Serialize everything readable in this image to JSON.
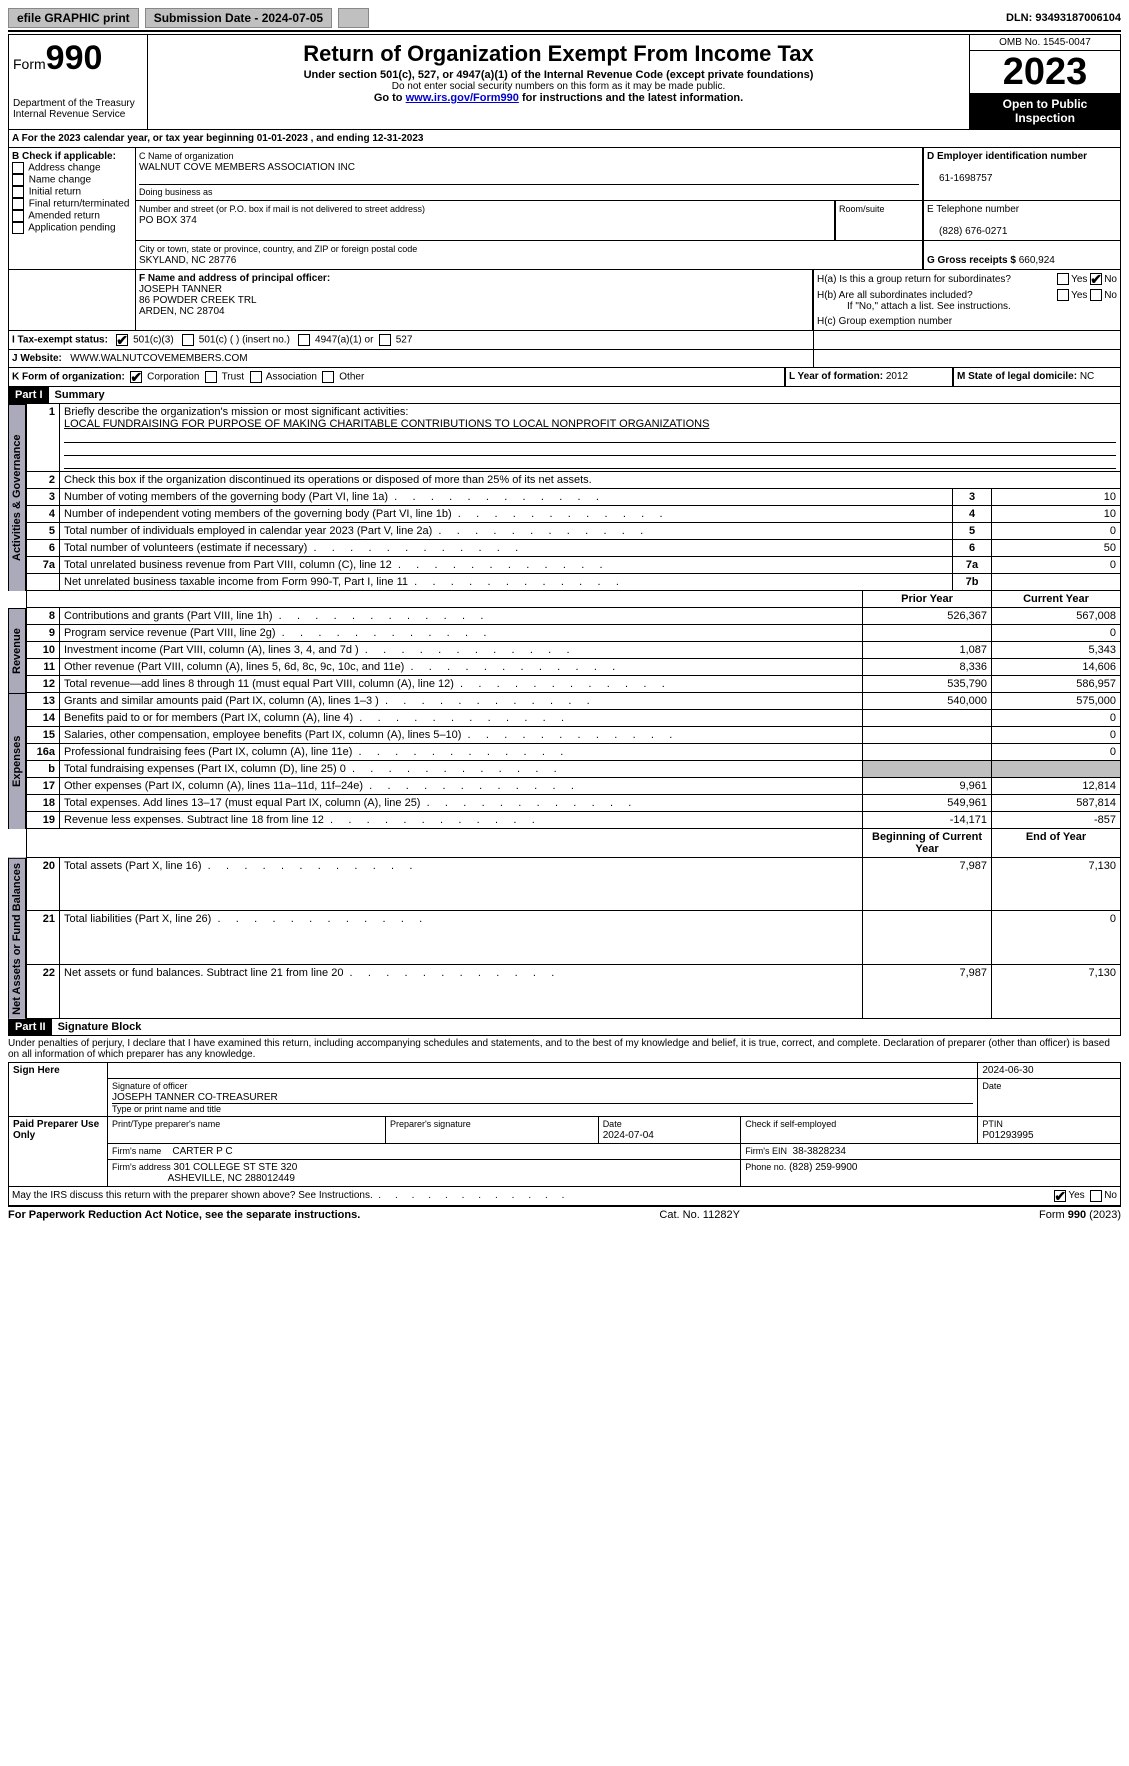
{
  "topbar": {
    "efile": "efile GRAPHIC print",
    "submission_label": "Submission Date - 2024-07-05",
    "dln_label": "DLN: 93493187006104"
  },
  "header": {
    "form_prefix": "Form",
    "form_number": "990",
    "dept": "Department of the Treasury\nInternal Revenue Service",
    "title": "Return of Organization Exempt From Income Tax",
    "sub1": "Under section 501(c), 527, or 4947(a)(1) of the Internal Revenue Code (except private foundations)",
    "sub2": "Do not enter social security numbers on this form as it may be made public.",
    "sub3_prefix": "Go to ",
    "sub3_link": "www.irs.gov/Form990",
    "sub3_suffix": " for instructions and the latest information.",
    "omb": "OMB No. 1545-0047",
    "year": "2023",
    "inspect": "Open to Public Inspection"
  },
  "periodA": {
    "text_prefix": "A For the 2023 calendar year, or tax year beginning ",
    "begin": "01-01-2023",
    "mid": " , and ending ",
    "end": "12-31-2023"
  },
  "boxB": {
    "label": "B Check if applicable:",
    "items": [
      "Address change",
      "Name change",
      "Initial return",
      "Final return/terminated",
      "Amended return",
      "Application pending"
    ]
  },
  "boxC": {
    "name_label": "C Name of organization",
    "name": "WALNUT COVE MEMBERS ASSOCIATION INC",
    "dba_label": "Doing business as",
    "addr_label": "Number and street (or P.O. box if mail is not delivered to street address)",
    "addr": "PO BOX 374",
    "room_label": "Room/suite",
    "city_label": "City or town, state or province, country, and ZIP or foreign postal code",
    "city": "SKYLAND, NC  28776"
  },
  "boxD": {
    "label": "D Employer identification number",
    "value": "61-1698757"
  },
  "boxE": {
    "label": "E Telephone number",
    "value": "(828) 676-0271"
  },
  "boxG": {
    "label": "G Gross receipts $",
    "value": "660,924"
  },
  "boxF": {
    "label": "F  Name and address of principal officer:",
    "name": "JOSEPH TANNER",
    "addr1": "86 POWDER CREEK TRL",
    "addr2": "ARDEN, NC  28704"
  },
  "boxH": {
    "a_label": "H(a)  Is this a group return for subordinates?",
    "b_label": "H(b)  Are all subordinates included?",
    "note": "If \"No,\" attach a list. See instructions.",
    "c_label": "H(c)  Group exemption number",
    "yes": "Yes",
    "no": "No"
  },
  "boxI": {
    "label": "I  Tax-exempt status:",
    "opt1": "501(c)(3)",
    "opt2": "501(c) (  ) (insert no.)",
    "opt3": "4947(a)(1) or",
    "opt4": "527"
  },
  "boxJ": {
    "label": "J  Website:",
    "value": "WWW.WALNUTCOVEMEMBERS.COM"
  },
  "boxK": {
    "label": "K Form of organization:",
    "opts": [
      "Corporation",
      "Trust",
      "Association",
      "Other"
    ]
  },
  "boxL": {
    "label": "L Year of formation:",
    "value": "2012"
  },
  "boxM": {
    "label": "M State of legal domicile:",
    "value": "NC"
  },
  "part1": {
    "header": "Part I",
    "title": "Summary",
    "line1_label": "Briefly describe the organization's mission or most significant activities:",
    "line1_value": "LOCAL FUNDRAISING FOR PURPOSE OF MAKING CHARITABLE CONTRIBUTIONS TO LOCAL NONPROFIT ORGANIZATIONS",
    "line2": "Check this box      if the organization discontinued its operations or disposed of more than 25% of its net assets.",
    "rows_single": [
      {
        "n": "3",
        "label": "Number of voting members of the governing body (Part VI, line 1a)",
        "box": "3",
        "val": "10"
      },
      {
        "n": "4",
        "label": "Number of independent voting members of the governing body (Part VI, line 1b)",
        "box": "4",
        "val": "10"
      },
      {
        "n": "5",
        "label": "Total number of individuals employed in calendar year 2023 (Part V, line 2a)",
        "box": "5",
        "val": "0"
      },
      {
        "n": "6",
        "label": "Total number of volunteers (estimate if necessary)",
        "box": "6",
        "val": "50"
      },
      {
        "n": "7a",
        "label": "Total unrelated business revenue from Part VIII, column (C), line 12",
        "box": "7a",
        "val": "0"
      },
      {
        "n": "",
        "label": "Net unrelated business taxable income from Form 990-T, Part I, line 11",
        "box": "7b",
        "val": ""
      }
    ],
    "col_prior": "Prior Year",
    "col_current": "Current Year",
    "revenue_rows": [
      {
        "n": "8",
        "label": "Contributions and grants (Part VIII, line 1h)",
        "prior": "526,367",
        "curr": "567,008"
      },
      {
        "n": "9",
        "label": "Program service revenue (Part VIII, line 2g)",
        "prior": "",
        "curr": "0"
      },
      {
        "n": "10",
        "label": "Investment income (Part VIII, column (A), lines 3, 4, and 7d )",
        "prior": "1,087",
        "curr": "5,343"
      },
      {
        "n": "11",
        "label": "Other revenue (Part VIII, column (A), lines 5, 6d, 8c, 9c, 10c, and 11e)",
        "prior": "8,336",
        "curr": "14,606"
      },
      {
        "n": "12",
        "label": "Total revenue—add lines 8 through 11 (must equal Part VIII, column (A), line 12)",
        "prior": "535,790",
        "curr": "586,957"
      }
    ],
    "expense_rows": [
      {
        "n": "13",
        "label": "Grants and similar amounts paid (Part IX, column (A), lines 1–3 )",
        "prior": "540,000",
        "curr": "575,000"
      },
      {
        "n": "14",
        "label": "Benefits paid to or for members (Part IX, column (A), line 4)",
        "prior": "",
        "curr": "0"
      },
      {
        "n": "15",
        "label": "Salaries, other compensation, employee benefits (Part IX, column (A), lines 5–10)",
        "prior": "",
        "curr": "0"
      },
      {
        "n": "16a",
        "label": "Professional fundraising fees (Part IX, column (A), line 11e)",
        "prior": "",
        "curr": "0"
      },
      {
        "n": "b",
        "label": "Total fundraising expenses (Part IX, column (D), line 25) 0",
        "prior": "SHADE",
        "curr": "SHADE"
      },
      {
        "n": "17",
        "label": "Other expenses (Part IX, column (A), lines 11a–11d, 11f–24e)",
        "prior": "9,961",
        "curr": "12,814"
      },
      {
        "n": "18",
        "label": "Total expenses. Add lines 13–17 (must equal Part IX, column (A), line 25)",
        "prior": "549,961",
        "curr": "587,814"
      },
      {
        "n": "19",
        "label": "Revenue less expenses. Subtract line 18 from line 12",
        "prior": "-14,171",
        "curr": "-857"
      }
    ],
    "col_begin": "Beginning of Current Year",
    "col_end": "End of Year",
    "net_rows": [
      {
        "n": "20",
        "label": "Total assets (Part X, line 16)",
        "prior": "7,987",
        "curr": "7,130"
      },
      {
        "n": "21",
        "label": "Total liabilities (Part X, line 26)",
        "prior": "",
        "curr": "0"
      },
      {
        "n": "22",
        "label": "Net assets or fund balances. Subtract line 21 from line 20",
        "prior": "7,987",
        "curr": "7,130"
      }
    ],
    "side_gov": "Activities & Governance",
    "side_rev": "Revenue",
    "side_exp": "Expenses",
    "side_net": "Net Assets or Fund Balances"
  },
  "part2": {
    "header": "Part II",
    "title": "Signature Block",
    "declaration": "Under penalties of perjury, I declare that I have examined this return, including accompanying schedules and statements, and to the best of my knowledge and belief, it is true, correct, and complete. Declaration of preparer (other than officer) is based on all information of which preparer has any knowledge.",
    "sign_here": "Sign Here",
    "sig_officer_label": "Signature of officer",
    "sig_officer_name": "JOSEPH TANNER  CO-TREASURER",
    "sig_name_label": "Type or print name and title",
    "sig_date_label": "Date",
    "sig_date": "2024-06-30",
    "paid": "Paid Preparer Use Only",
    "prep_name_label": "Print/Type preparer's name",
    "prep_sig_label": "Preparer's signature",
    "prep_date_label": "Date",
    "prep_date": "2024-07-04",
    "prep_check_label": "Check       if self-employed",
    "ptin_label": "PTIN",
    "ptin": "P01293995",
    "firm_name_label": "Firm's name",
    "firm_name": "CARTER P C",
    "firm_ein_label": "Firm's EIN",
    "firm_ein": "38-3828234",
    "firm_addr_label": "Firm's address",
    "firm_addr1": "301 COLLEGE ST STE 320",
    "firm_addr2": "ASHEVILLE, NC  288012449",
    "firm_phone_label": "Phone no.",
    "firm_phone": "(828) 259-9900",
    "discuss": "May the IRS discuss this return with the preparer shown above? See Instructions.",
    "yes": "Yes",
    "no": "No"
  },
  "footer": {
    "left": "For Paperwork Reduction Act Notice, see the separate instructions.",
    "mid": "Cat. No. 11282Y",
    "right_prefix": "Form ",
    "right_form": "990",
    "right_suffix": " (2023)"
  }
}
